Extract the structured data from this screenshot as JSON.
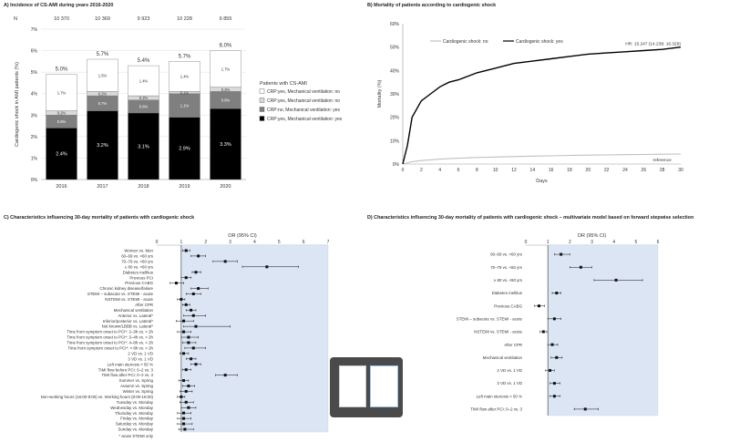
{
  "panels": {
    "A": "A) Incidence of CS-AMI during years 2016-2020",
    "B": "B) Mortality of patients according to cardiogenic shock",
    "C": "C) Characteristics influencing 30-day mortality of patients with cardiogenic shock",
    "D": "D) Characteristics influencing 30-day mortality of patients with cardiogenic shock – multivariate model based on forward stepwise selection"
  },
  "chart_data": [
    {
      "type": "bar",
      "stacked": true,
      "title": "A) Incidence of CS-AMI during years 2016-2020",
      "categories": [
        "2016",
        "2017",
        "2018",
        "2019",
        "2020"
      ],
      "n_label": "N",
      "n_values": [
        "10 370",
        "10 369",
        "9 923",
        "10 228",
        "9 855"
      ],
      "totals": [
        "5.0%",
        "5.7%",
        "5.4%",
        "5.7%",
        "6.0%"
      ],
      "ylabel": "Cardiogenic shock in AMI patients (%)",
      "ylim": [
        0,
        7
      ],
      "yticks": [
        "0%",
        "1%",
        "2%",
        "3%",
        "4%",
        "5%",
        "6%",
        "7%"
      ],
      "legend_title": "Patients with CS-AMI",
      "legend_position": "right",
      "series": [
        {
          "name": "CRP:yes, Mechanical ventilation: yes",
          "color": "#000000",
          "values": [
            2.4,
            3.2,
            3.1,
            2.9,
            3.3
          ],
          "labels": [
            "2.4%",
            "3.2%",
            "3.1%",
            "2.9%",
            "3.3%"
          ]
        },
        {
          "name": "CRP:no, Mechanical ventilation: yes",
          "color": "#7f7f7f",
          "values": [
            0.6,
            0.7,
            0.6,
            1.1,
            0.8
          ],
          "labels": [
            "0.6%",
            "0.7%",
            "0.6%",
            "1.1%",
            "0.8%"
          ]
        },
        {
          "name": "CRP:yes, Mechanical ventilation: no",
          "color": "#d9d9d9",
          "values": [
            0.2,
            0.2,
            0.2,
            0.1,
            0.2
          ],
          "labels": [
            "0.2%",
            "0.2%",
            "0.2%",
            "0.1%",
            "0.2%"
          ]
        },
        {
          "name": "CRP:yes, Mechanical ventilation: no",
          "color": "#ffffff",
          "values": [
            1.7,
            1.5,
            1.4,
            1.4,
            1.7
          ],
          "labels": [
            "1.7%",
            "1.5%",
            "1.4%",
            "1.4%",
            "1.7%"
          ]
        }
      ]
    },
    {
      "type": "line",
      "title": "B) Mortality of patients according to cardiogenic shock",
      "xlabel": "Days",
      "ylabel": "Mortality (%)",
      "xlim": [
        0,
        30
      ],
      "ylim": [
        0,
        60
      ],
      "xticks": [
        0,
        2,
        4,
        6,
        8,
        10,
        12,
        14,
        16,
        18,
        20,
        22,
        24,
        26,
        28,
        30
      ],
      "yticks": [
        "0%",
        "10%",
        "20%",
        "30%",
        "40%",
        "50%",
        "60%"
      ],
      "legend_position": "top-left",
      "annotations": {
        "hr": "HR: 15.247 (14.238; 16.329)",
        "reference": "reference"
      },
      "series": [
        {
          "name": "Cardiogenic shock: no",
          "color": "#bfbfbf",
          "x": [
            0,
            1,
            2,
            3,
            4,
            6,
            8,
            10,
            12,
            14,
            16,
            18,
            20,
            22,
            24,
            26,
            28,
            30
          ],
          "y": [
            0,
            1,
            1.5,
            1.8,
            2.1,
            2.5,
            2.8,
            3,
            3.2,
            3.4,
            3.5,
            3.7,
            3.8,
            3.9,
            4,
            4.1,
            4.2,
            4.3
          ]
        },
        {
          "name": "Cardiogenic shock: yes",
          "color": "#000000",
          "x": [
            0,
            0.5,
            1,
            2,
            3,
            4,
            5,
            6,
            8,
            10,
            12,
            14,
            16,
            18,
            20,
            22,
            24,
            26,
            28,
            30
          ],
          "y": [
            0,
            8,
            20,
            27,
            30,
            33,
            35,
            36,
            39,
            41,
            43,
            44,
            45,
            46,
            47,
            47.5,
            48,
            48.5,
            49,
            50
          ]
        }
      ]
    },
    {
      "type": "scatter",
      "title": "C) Characteristics influencing 30-day mortality of patients with cardiogenic shock",
      "xlabel": "OR (95% CI)",
      "xlim": [
        0,
        7
      ],
      "xticks": [
        0,
        1,
        2,
        3,
        4,
        5,
        6,
        7
      ],
      "reference_line": 1,
      "footnote": "* acute STEMI only",
      "rows": [
        {
          "label": "Women vs. Men",
          "or": 1.2,
          "lo": 1.05,
          "hi": 1.35
        },
        {
          "label": "60–69 vs. <60 yrs",
          "or": 1.7,
          "lo": 1.4,
          "hi": 2.0
        },
        {
          "label": "70–79 vs. <60 yrs",
          "or": 2.8,
          "lo": 2.3,
          "hi": 3.3
        },
        {
          "label": "≥ 80 vs. <60 yrs",
          "or": 4.5,
          "lo": 3.5,
          "hi": 5.8
        },
        {
          "label": "Diabetes mellitus",
          "or": 1.6,
          "lo": 1.45,
          "hi": 1.8
        },
        {
          "label": "Previous PCI",
          "or": 1.2,
          "lo": 1.0,
          "hi": 1.4
        },
        {
          "label": "Previous CABG",
          "or": 0.8,
          "lo": 0.55,
          "hi": 1.1
        },
        {
          "label": "Chronic kidney disease/failure",
          "or": 1.7,
          "lo": 1.4,
          "hi": 2.1
        },
        {
          "label": "STEMI – subacute vs. STEMI - acute",
          "or": 1.5,
          "lo": 1.2,
          "hi": 1.8
        },
        {
          "label": "NSTEMI vs. STEMI - acute",
          "or": 1.0,
          "lo": 0.85,
          "hi": 1.15
        },
        {
          "label": "After CPR",
          "or": 1.2,
          "lo": 1.05,
          "hi": 1.35
        },
        {
          "label": "Mechanical ventilation",
          "or": 1.4,
          "lo": 1.2,
          "hi": 1.6
        },
        {
          "label": "Anterior vs. Lateral*",
          "or": 1.5,
          "lo": 1.1,
          "hi": 2.0
        },
        {
          "label": "Inferior/posterior vs. Lateral*",
          "or": 1.1,
          "lo": 0.8,
          "hi": 1.5
        },
        {
          "label": "Not known/LBBB vs. Lateral*",
          "or": 1.6,
          "lo": 1.1,
          "hi": 3.0
        },
        {
          "label": "Time from symptom onset to PCI*: 2–3h vs. < 2h",
          "or": 1.1,
          "lo": 0.85,
          "hi": 1.4
        },
        {
          "label": "Time from symptom onset to PCI*: 3–4h vs. < 2h",
          "or": 1.3,
          "lo": 1.0,
          "hi": 1.7
        },
        {
          "label": "Time from symptom onset to PCI*: 4–8h vs. < 2h",
          "or": 1.3,
          "lo": 1.05,
          "hi": 1.6
        },
        {
          "label": "Time from symptom onset to PCI*: > 8h vs. < 2h",
          "or": 1.5,
          "lo": 1.15,
          "hi": 2.0
        },
        {
          "label": "2 VD vs. 1 VD",
          "or": 1.1,
          "lo": 0.95,
          "hi": 1.3
        },
        {
          "label": "3 VD vs. 1 VD",
          "or": 1.4,
          "lo": 1.2,
          "hi": 1.6
        },
        {
          "label": "Left main stenosis > 50 %",
          "or": 1.6,
          "lo": 1.4,
          "hi": 1.8
        },
        {
          "label": "TIMI flow before PCI: 0–2 vs. 3",
          "or": 1.2,
          "lo": 1.05,
          "hi": 1.4
        },
        {
          "label": "TIMI flow after PCI: 0–2 vs. 3",
          "or": 2.8,
          "lo": 2.4,
          "hi": 3.3
        },
        {
          "label": "Summer vs. Spring",
          "or": 1.1,
          "lo": 0.9,
          "hi": 1.3
        },
        {
          "label": "Autumn vs. Spring",
          "or": 1.3,
          "lo": 1.05,
          "hi": 1.55
        },
        {
          "label": "Winter vs. Spring",
          "or": 1.2,
          "lo": 0.95,
          "hi": 1.45
        },
        {
          "label": "Non-working hours (16:00-8:00) vs. Working hours (8:00-16:00)",
          "or": 1.0,
          "lo": 0.85,
          "hi": 1.15
        },
        {
          "label": "Tuesday vs. Monday",
          "or": 1.2,
          "lo": 0.95,
          "hi": 1.5
        },
        {
          "label": "Wednesday vs. Monday",
          "or": 1.3,
          "lo": 1.0,
          "hi": 1.6
        },
        {
          "label": "Thursday vs. Monday",
          "or": 1.1,
          "lo": 0.85,
          "hi": 1.4
        },
        {
          "label": "Friday vs. Monday",
          "or": 1.1,
          "lo": 0.85,
          "hi": 1.4
        },
        {
          "label": "Saturday vs. Monday",
          "or": 1.1,
          "lo": 0.85,
          "hi": 1.45
        },
        {
          "label": "Sunday vs. Monday",
          "or": 1.15,
          "lo": 0.9,
          "hi": 1.5
        }
      ]
    },
    {
      "type": "scatter",
      "title": "D) Characteristics influencing 30-day mortality of patients with cardiogenic shock – multivariate model based on forward stepwise selection",
      "xlabel": "OR (95% CI)",
      "xlim": [
        0,
        6
      ],
      "xticks": [
        0,
        1,
        2,
        3,
        4,
        5,
        6
      ],
      "reference_line": 1,
      "rows": [
        {
          "label": "60–69 vs. <60 yrs",
          "or": 1.6,
          "lo": 1.3,
          "hi": 2.0
        },
        {
          "label": "70–79 vs. <60 yrs",
          "or": 2.5,
          "lo": 2.0,
          "hi": 3.0
        },
        {
          "label": "≥ 80 vs. <60 yrs",
          "or": 4.1,
          "lo": 3.1,
          "hi": 5.3
        },
        {
          "label": "Diabetes mellitus",
          "or": 1.4,
          "lo": 1.2,
          "hi": 1.6
        },
        {
          "label": "Previous CABG",
          "or": 0.6,
          "lo": 0.4,
          "hi": 0.85
        },
        {
          "label": "STEMI – subacute vs. STEMI - acute",
          "or": 1.3,
          "lo": 1.0,
          "hi": 1.6
        },
        {
          "label": "NSTEMI vs. STEMI - acute",
          "or": 0.8,
          "lo": 0.65,
          "hi": 0.95
        },
        {
          "label": "After CPR",
          "or": 1.2,
          "lo": 1.0,
          "hi": 1.45
        },
        {
          "label": "Mechanical ventilation",
          "or": 1.4,
          "lo": 1.15,
          "hi": 1.65
        },
        {
          "label": "2 VD vs. 1 VD",
          "or": 1.1,
          "lo": 0.9,
          "hi": 1.3
        },
        {
          "label": "3 VD vs. 1 VD",
          "or": 1.3,
          "lo": 1.1,
          "hi": 1.55
        },
        {
          "label": "Left main stenosis > 50 %",
          "or": 1.3,
          "lo": 1.1,
          "hi": 1.55
        },
        {
          "label": "TIMI flow after PCI: 0–2 vs. 3",
          "or": 2.7,
          "lo": 2.2,
          "hi": 3.3
        }
      ]
    }
  ]
}
